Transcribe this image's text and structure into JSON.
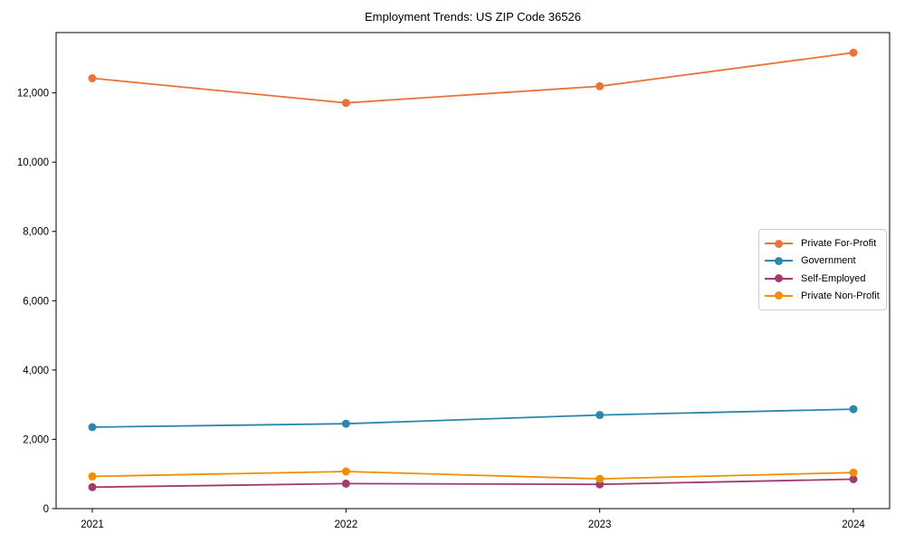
{
  "chart_data": {
    "type": "line",
    "title": "Employment Trends: US ZIP Code 36526",
    "categories": [
      "2021",
      "2022",
      "2023",
      "2024"
    ],
    "series": [
      {
        "name": "Private For-Profit",
        "color": "#E8743B",
        "values": [
          12420,
          11710,
          12190,
          13160
        ]
      },
      {
        "name": "Government",
        "color": "#2E86AB",
        "values": [
          2350,
          2450,
          2700,
          2870
        ]
      },
      {
        "name": "Self-Employed",
        "color": "#A23B72",
        "values": [
          620,
          720,
          700,
          850
        ]
      },
      {
        "name": "Private Non-Profit",
        "color": "#F18F01",
        "values": [
          930,
          1070,
          860,
          1040
        ]
      }
    ],
    "xlabel": "",
    "ylabel": "",
    "ylim": [
      0,
      13740
    ],
    "yticks": {
      "values": [
        0,
        2000,
        4000,
        6000,
        8000,
        10000,
        12000
      ],
      "labels": [
        "0",
        "2,000",
        "4,000",
        "6,000",
        "8,000",
        "10,000",
        "12,000"
      ]
    },
    "grid": false,
    "legend_position": "center-right",
    "marker": "circle",
    "axis_color": "#000000"
  }
}
